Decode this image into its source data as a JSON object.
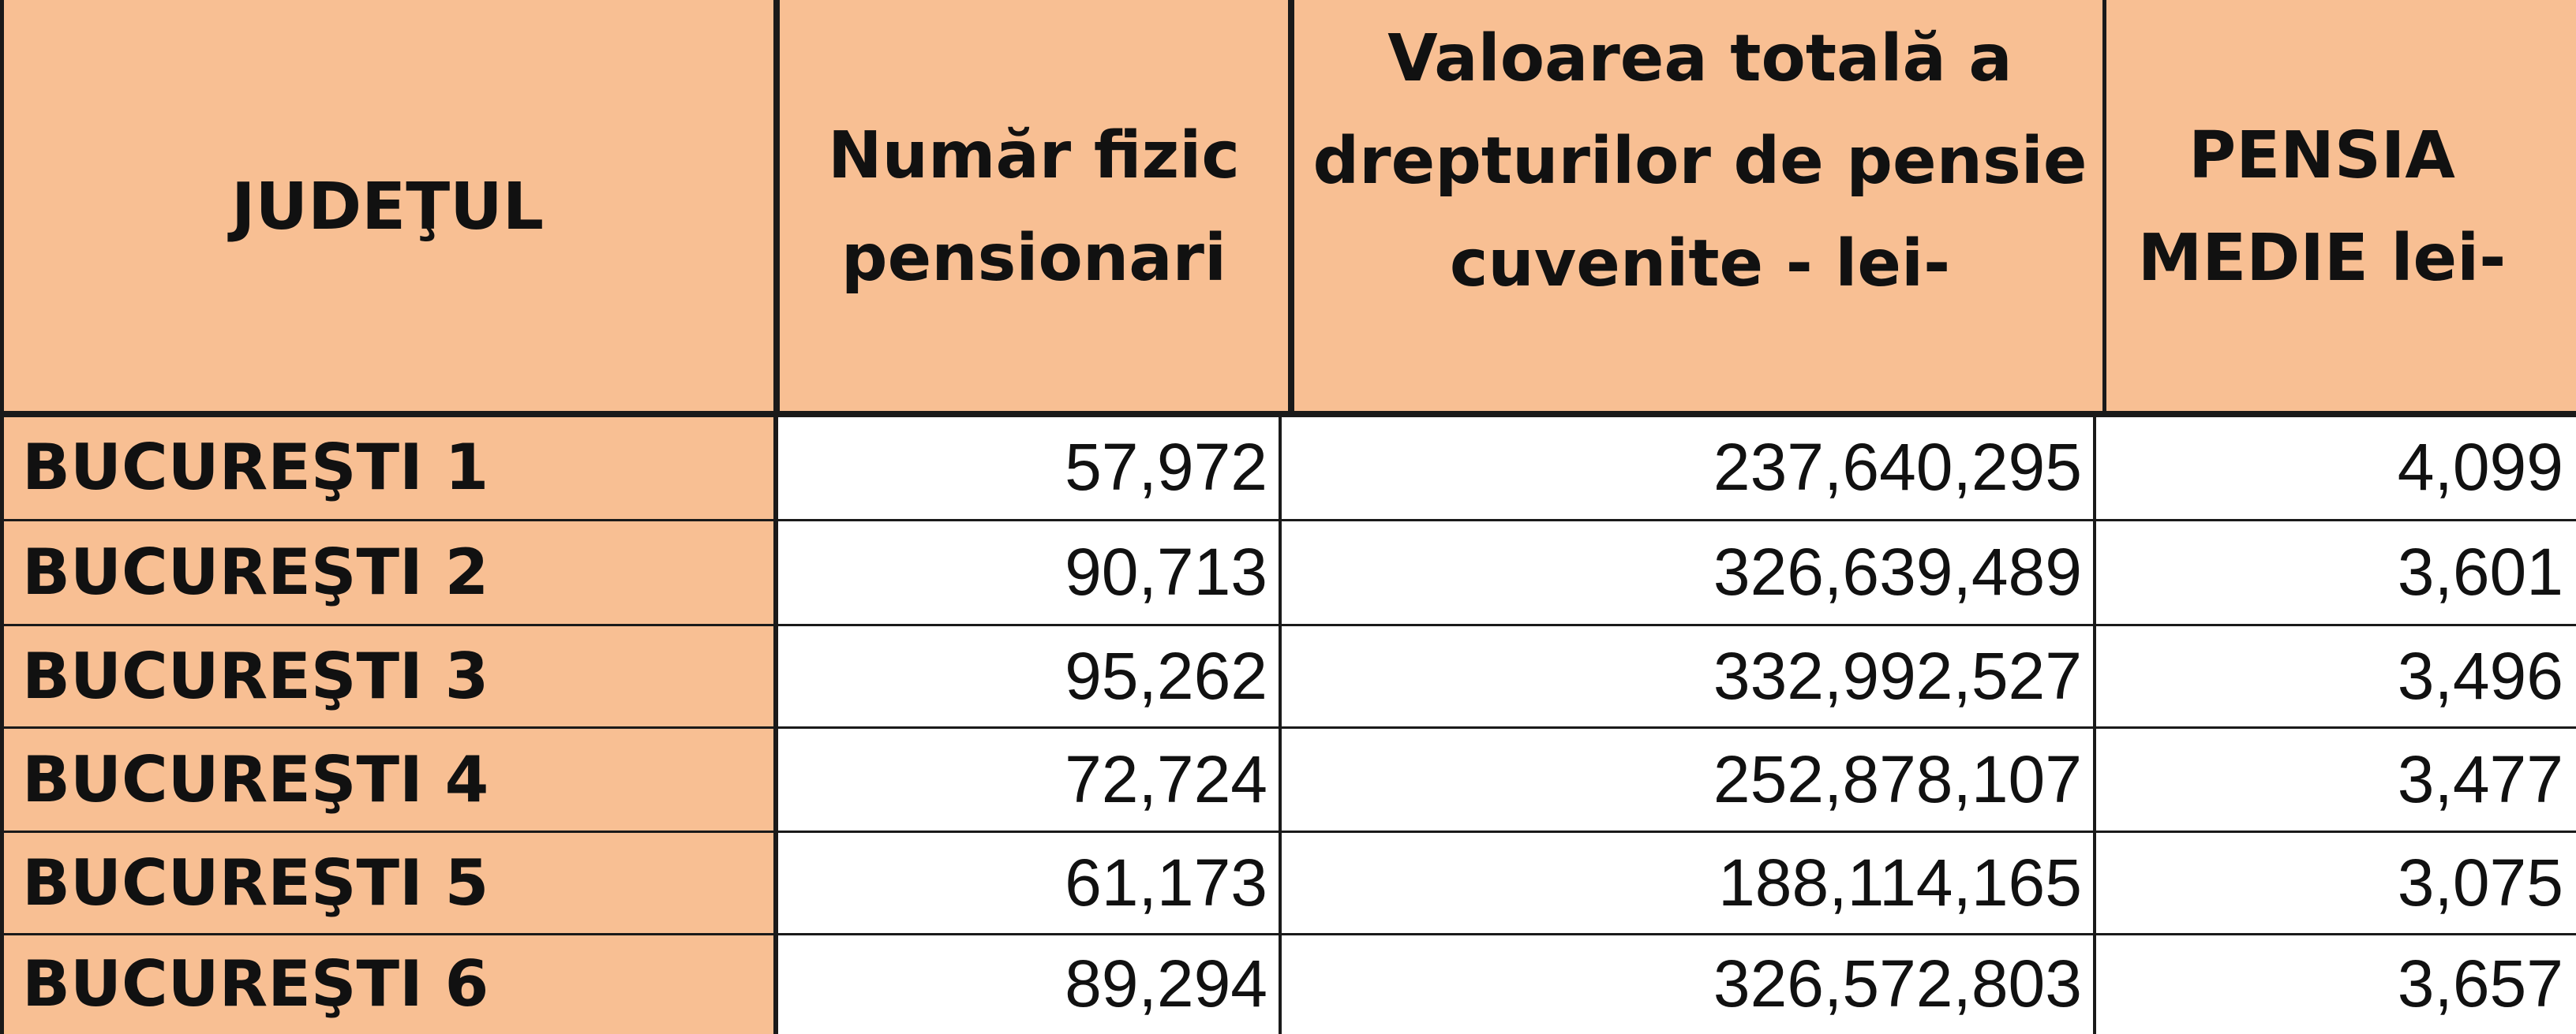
{
  "table": {
    "headers": [
      "JUDEŢUL",
      "Număr fizic pensionari",
      "Valoarea totală a drepturilor de pensie cuvenite - lei-",
      "PENSIA MEDIE lei-"
    ],
    "rows": [
      {
        "judet": "BUCUREŞTI  1",
        "pensionari": "57,972",
        "valoare": "237,640,295",
        "pensie_medie": "4,099"
      },
      {
        "judet": "BUCUREŞTI  2",
        "pensionari": "90,713",
        "valoare": "326,639,489",
        "pensie_medie": "3,601"
      },
      {
        "judet": "BUCUREŞTI  3",
        "pensionari": "95,262",
        "valoare": "332,992,527",
        "pensie_medie": "3,496"
      },
      {
        "judet": "BUCUREŞTI  4",
        "pensionari": "72,724",
        "valoare": "252,878,107",
        "pensie_medie": "3,477"
      },
      {
        "judet": "BUCUREŞTI  5",
        "pensionari": "61,173",
        "valoare": "188,114,165",
        "pensie_medie": "3,075"
      },
      {
        "judet": "BUCUREŞTI  6",
        "pensionari": "89,294",
        "valoare": "326,572,803",
        "pensie_medie": "3,657"
      }
    ],
    "colors": {
      "header_fill": "#f8bf93",
      "label_fill": "#f8bf93",
      "cell_fill": "#ffffff",
      "border": "#1a1a1a"
    }
  }
}
